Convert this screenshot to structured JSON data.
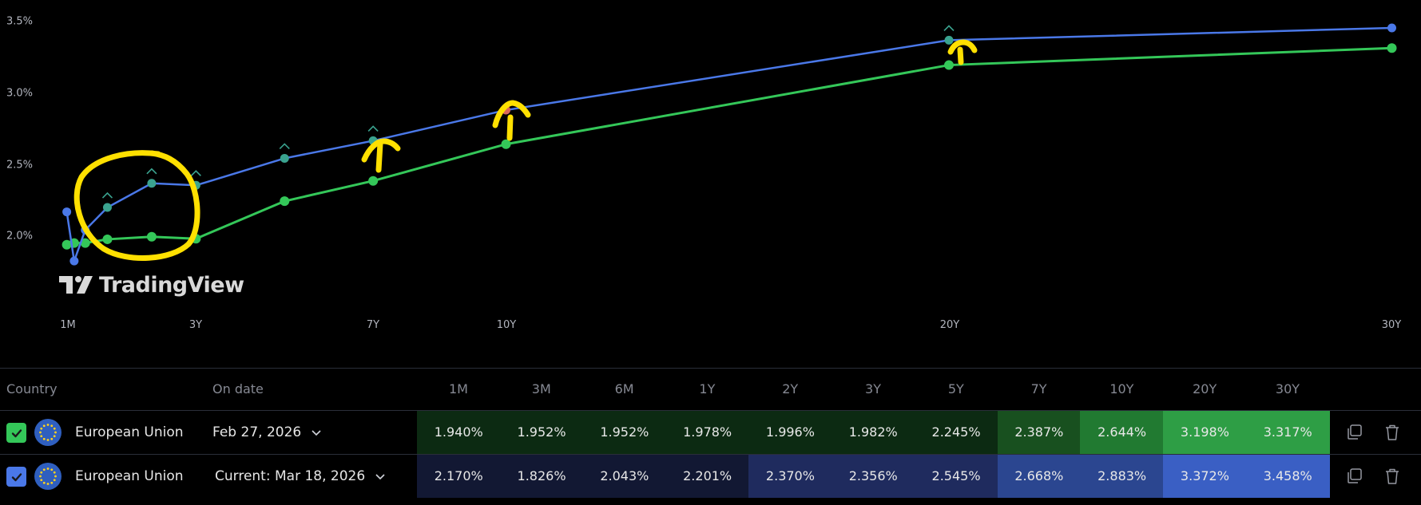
{
  "chart_data": {
    "type": "line",
    "title": "",
    "xlabel": "",
    "ylabel": "",
    "x_tick_labels": [
      "1M",
      "3Y",
      "7Y",
      "10Y",
      "20Y",
      "30Y"
    ],
    "y_tick_labels": [
      "3.5%",
      "3.0%",
      "2.5%",
      "2.0%"
    ],
    "ylim": [
      1.75,
      3.55
    ],
    "categories": [
      "1M",
      "3M",
      "6M",
      "1Y",
      "2Y",
      "3Y",
      "5Y",
      "7Y",
      "10Y",
      "20Y",
      "30Y"
    ],
    "x_years": [
      0.0833,
      0.25,
      0.5,
      1,
      2,
      3,
      5,
      7,
      10,
      20,
      30
    ],
    "series": [
      {
        "name": "European Union — Feb 27, 2026",
        "color": "#34c759",
        "values": [
          1.94,
          1.952,
          1.952,
          1.978,
          1.996,
          1.982,
          2.245,
          2.387,
          2.644,
          3.198,
          3.317
        ]
      },
      {
        "name": "European Union — Current: Mar 18, 2026",
        "color": "#4a78e8",
        "values": [
          2.17,
          1.826,
          2.043,
          2.201,
          2.37,
          2.356,
          2.545,
          2.668,
          2.883,
          3.372,
          3.458
        ]
      }
    ],
    "grid": false,
    "annotations": [
      "yellow hand-drawn circle around 3M–3Y region",
      "yellow up-arrows at 7Y, 10Y, 20Y"
    ]
  },
  "watermark": "TradingView",
  "table": {
    "headers": {
      "country": "Country",
      "on_date": "On date",
      "tenors": [
        "1M",
        "3M",
        "6M",
        "1Y",
        "2Y",
        "3Y",
        "5Y",
        "7Y",
        "10Y",
        "20Y",
        "30Y"
      ]
    },
    "rows": [
      {
        "checked": true,
        "checkbox_color": "#34c759",
        "country": "European Union",
        "date": "Feb 27, 2026",
        "values": [
          "1.940%",
          "1.952%",
          "1.952%",
          "1.978%",
          "1.996%",
          "1.982%",
          "2.245%",
          "2.387%",
          "2.644%",
          "3.198%",
          "3.317%"
        ],
        "cell_colors": [
          "#0c2a12",
          "#0c2a12",
          "#0c2a12",
          "#0c2a12",
          "#0c2a12",
          "#0c2a12",
          "#0c2a12",
          "#18501f",
          "#217a31",
          "#2e9e45",
          "#2e9e45"
        ]
      },
      {
        "checked": true,
        "checkbox_color": "#4a78e8",
        "country": "European Union",
        "date": "Current: Mar 18, 2026",
        "values": [
          "2.170%",
          "1.826%",
          "2.043%",
          "2.201%",
          "2.370%",
          "2.356%",
          "2.545%",
          "2.668%",
          "2.883%",
          "3.372%",
          "3.458%"
        ],
        "cell_colors": [
          "#121833",
          "#121833",
          "#121833",
          "#121833",
          "#1f2b5e",
          "#1f2b5e",
          "#1f2b5e",
          "#2b4690",
          "#2b4690",
          "#3a5fc4",
          "#3a5fc4"
        ]
      }
    ],
    "icons": [
      "copy-icon",
      "trash-icon"
    ]
  }
}
